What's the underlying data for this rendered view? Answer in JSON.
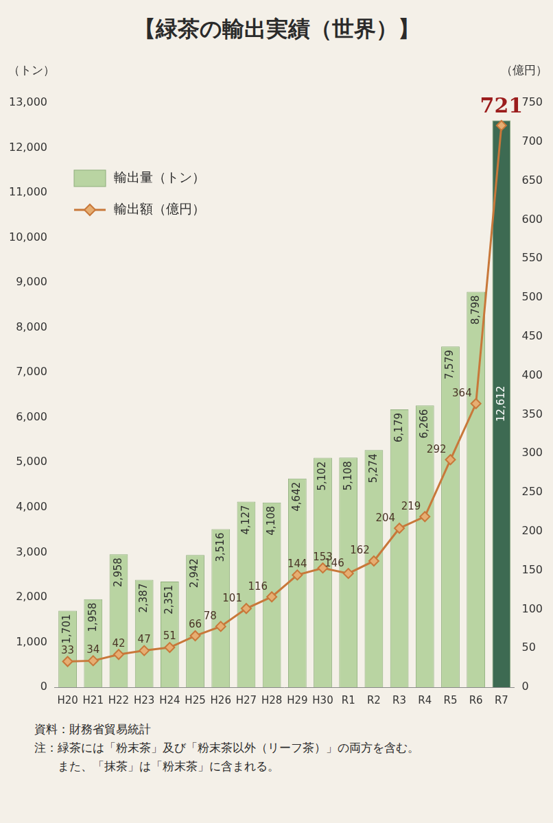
{
  "chart_data": {
    "type": "bar",
    "title": "【緑茶の輸出実績（世界）】",
    "y_label": "（トン）",
    "y2_label": "（億円）",
    "categories": [
      "H20",
      "H21",
      "H22",
      "H23",
      "H24",
      "H25",
      "H26",
      "H27",
      "H28",
      "H29",
      "H30",
      "R1",
      "R2",
      "R3",
      "R4",
      "R5",
      "R6",
      "R7"
    ],
    "series": [
      {
        "name": "輸出量（トン）",
        "type": "bar",
        "colors": [
          "#b9d4a2",
          "#b9d4a2",
          "#b9d4a2",
          "#b9d4a2",
          "#b9d4a2",
          "#b9d4a2",
          "#b9d4a2",
          "#b9d4a2",
          "#b9d4a2",
          "#b9d4a2",
          "#b9d4a2",
          "#b9d4a2",
          "#b9d4a2",
          "#b9d4a2",
          "#b9d4a2",
          "#b9d4a2",
          "#b9d4a2",
          "#3d6a52"
        ],
        "values": [
          1701,
          1958,
          2958,
          2387,
          2351,
          2942,
          3516,
          4127,
          4108,
          4642,
          5102,
          5108,
          5274,
          6179,
          6266,
          7579,
          8798,
          12612
        ],
        "value_labels": [
          "1,701",
          "1,958",
          "2,958",
          "2,387",
          "2,351",
          "2,942",
          "3,516",
          "4,127",
          "4,108",
          "4,642",
          "5,102",
          "5,108",
          "5,274",
          "6,179",
          "6,266",
          "7,579",
          "8,798",
          "12,612"
        ]
      },
      {
        "name": "輸出額（億円）",
        "type": "line",
        "axis": "y2",
        "color": "#c8783a",
        "marker": "diamond",
        "values": [
          33,
          34,
          42,
          47,
          51,
          66,
          78,
          101,
          116,
          144,
          153,
          146,
          162,
          204,
          219,
          292,
          364,
          721
        ]
      }
    ],
    "ylim": [
      0,
      13000
    ],
    "yticks": [
      0,
      {
        "value": 1000,
        "label": "1,000"
      },
      {
        "value": 2000,
        "label": "2,000"
      },
      {
        "value": 3000,
        "label": "3,000"
      },
      {
        "value": 4000,
        "label": "4,000"
      },
      {
        "value": 5000,
        "label": "5,000"
      },
      {
        "value": 6000,
        "label": "6,000"
      },
      {
        "value": 7000,
        "label": "7,000"
      },
      {
        "value": 8000,
        "label": "8,000"
      },
      {
        "value": 9000,
        "label": "9,000"
      },
      {
        "value": 10000,
        "label": "10,000"
      },
      {
        "value": 11000,
        "label": "11,000"
      },
      {
        "value": 12000,
        "label": "12,000"
      },
      {
        "value": 13000,
        "label": "13,000"
      }
    ],
    "y2lim": [
      0,
      750
    ],
    "y2ticks": [
      0,
      50,
      100,
      150,
      200,
      250,
      300,
      350,
      400,
      450,
      500,
      550,
      600,
      650,
      700,
      750
    ],
    "grid": false,
    "legend": "upper left",
    "data_labels": true,
    "source": "資料：財務省貿易統計",
    "notes": [
      "注：緑茶には「粉末茶」及び「粉末茶以外（リーフ茶）」の両方を含む。",
      "また、「抹茶」は「粉末茶」に含まれる。"
    ]
  }
}
